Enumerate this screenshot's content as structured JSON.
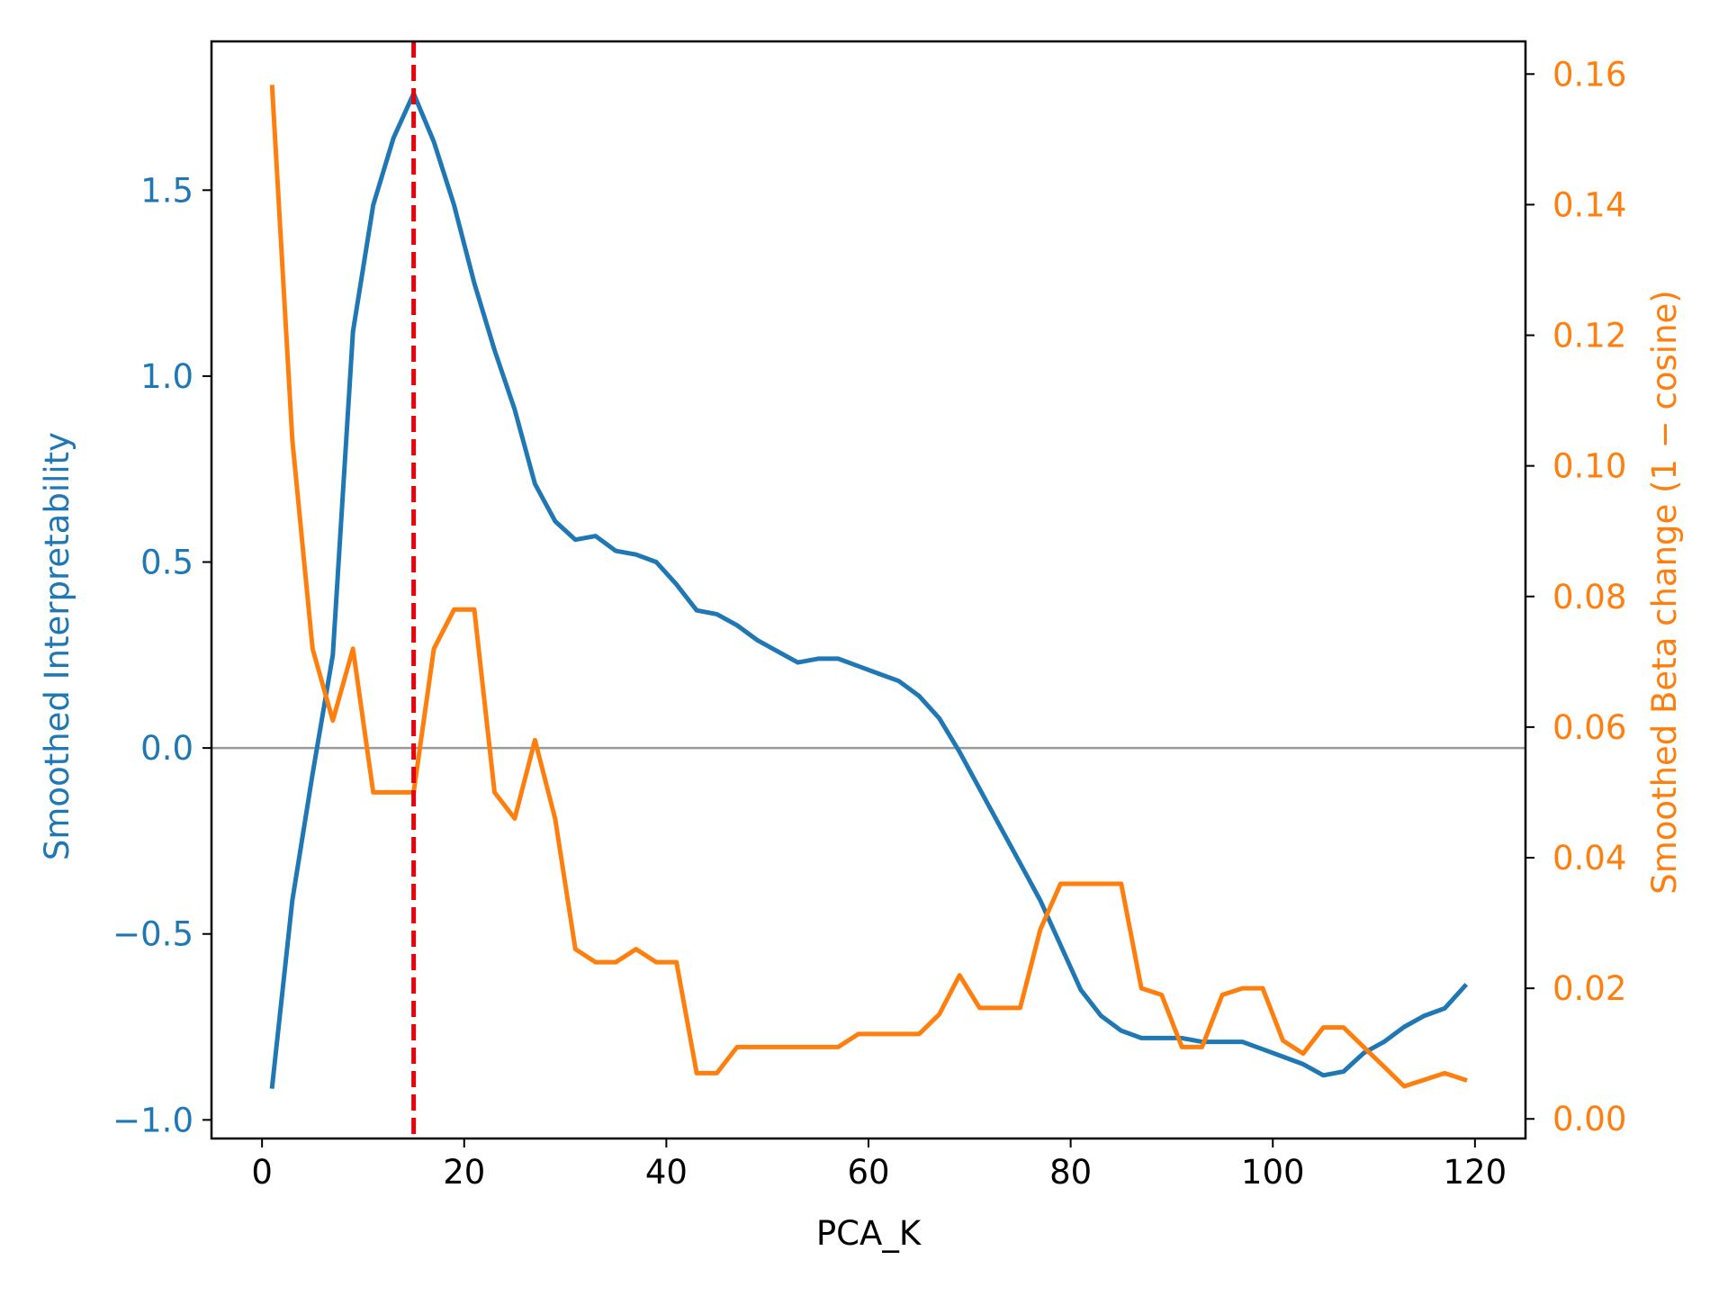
{
  "chart_data": {
    "type": "line",
    "xlabel": "PCA_K",
    "ylabel_left": "Smoothed Interpretability",
    "ylabel_right": "Smoothed Beta change (1 − cosine)",
    "xlim": [
      -5,
      125
    ],
    "ylim_left": [
      -1.05,
      1.9
    ],
    "ylim_right": [
      -0.003,
      0.165
    ],
    "xticks": [
      0,
      20,
      40,
      60,
      80,
      100,
      120
    ],
    "xtick_labels": [
      "0",
      "20",
      "40",
      "60",
      "80",
      "100",
      "120"
    ],
    "yticks_left": [
      -1.0,
      -0.5,
      0.0,
      0.5,
      1.0,
      1.5
    ],
    "ytick_labels_left": [
      "−1.0",
      "−0.5",
      "0.0",
      "0.5",
      "1.0",
      "1.5"
    ],
    "yticks_right": [
      0.0,
      0.02,
      0.04,
      0.06,
      0.08,
      0.1,
      0.12,
      0.14,
      0.16
    ],
    "ytick_labels_right": [
      "0.00",
      "0.02",
      "0.04",
      "0.06",
      "0.08",
      "0.10",
      "0.12",
      "0.14",
      "0.16"
    ],
    "grid": false,
    "legend": "none",
    "reference_lines": {
      "vertical_x": 15,
      "vertical_style": "dashed",
      "vertical_color": "#e8000b",
      "horizontal_y_left": 0.0,
      "horizontal_color": "#999999"
    },
    "series": [
      {
        "axis": "left",
        "color": "#1f77b4",
        "x": [
          1,
          3,
          5,
          7,
          9,
          11,
          13,
          15,
          17,
          19,
          21,
          23,
          25,
          27,
          29,
          31,
          33,
          35,
          37,
          39,
          41,
          43,
          45,
          47,
          49,
          51,
          53,
          55,
          57,
          59,
          61,
          63,
          65,
          67,
          69,
          71,
          73,
          75,
          77,
          79,
          81,
          83,
          85,
          87,
          89,
          91,
          93,
          95,
          97,
          99,
          101,
          103,
          105,
          107,
          109,
          111,
          113,
          115,
          117,
          119
        ],
        "y": [
          -0.91,
          -0.41,
          -0.07,
          0.25,
          1.12,
          1.46,
          1.64,
          1.76,
          1.63,
          1.46,
          1.25,
          1.07,
          0.91,
          0.71,
          0.61,
          0.56,
          0.57,
          0.53,
          0.52,
          0.5,
          0.44,
          0.37,
          0.36,
          0.33,
          0.29,
          0.26,
          0.23,
          0.24,
          0.24,
          0.22,
          0.2,
          0.18,
          0.14,
          0.08,
          -0.01,
          -0.11,
          -0.21,
          -0.31,
          -0.41,
          -0.53,
          -0.65,
          -0.72,
          -0.76,
          -0.78,
          -0.78,
          -0.78,
          -0.79,
          -0.79,
          -0.79,
          -0.81,
          -0.83,
          -0.85,
          -0.88,
          -0.87,
          -0.82,
          -0.79,
          -0.75,
          -0.72,
          -0.7,
          -0.64
        ]
      },
      {
        "axis": "right",
        "color": "#ff7f0e",
        "x": [
          1,
          3,
          5,
          7,
          9,
          11,
          13,
          15,
          17,
          19,
          21,
          23,
          25,
          27,
          29,
          31,
          33,
          35,
          37,
          39,
          41,
          43,
          45,
          47,
          49,
          51,
          53,
          55,
          57,
          59,
          61,
          63,
          65,
          67,
          69,
          71,
          73,
          75,
          77,
          79,
          81,
          83,
          85,
          87,
          89,
          91,
          93,
          95,
          97,
          99,
          101,
          103,
          105,
          107,
          109,
          111,
          113,
          115,
          117,
          119
        ],
        "y": [
          0.158,
          0.104,
          0.072,
          0.061,
          0.072,
          0.05,
          0.05,
          0.05,
          0.072,
          0.078,
          0.078,
          0.05,
          0.046,
          0.058,
          0.046,
          0.026,
          0.024,
          0.024,
          0.026,
          0.024,
          0.024,
          0.007,
          0.007,
          0.011,
          0.011,
          0.011,
          0.011,
          0.011,
          0.011,
          0.013,
          0.013,
          0.013,
          0.013,
          0.016,
          0.022,
          0.017,
          0.017,
          0.017,
          0.029,
          0.036,
          0.036,
          0.036,
          0.036,
          0.02,
          0.019,
          0.011,
          0.011,
          0.019,
          0.02,
          0.02,
          0.012,
          0.01,
          0.014,
          0.014,
          0.011,
          0.008,
          0.005,
          0.006,
          0.007,
          0.006
        ]
      }
    ]
  }
}
